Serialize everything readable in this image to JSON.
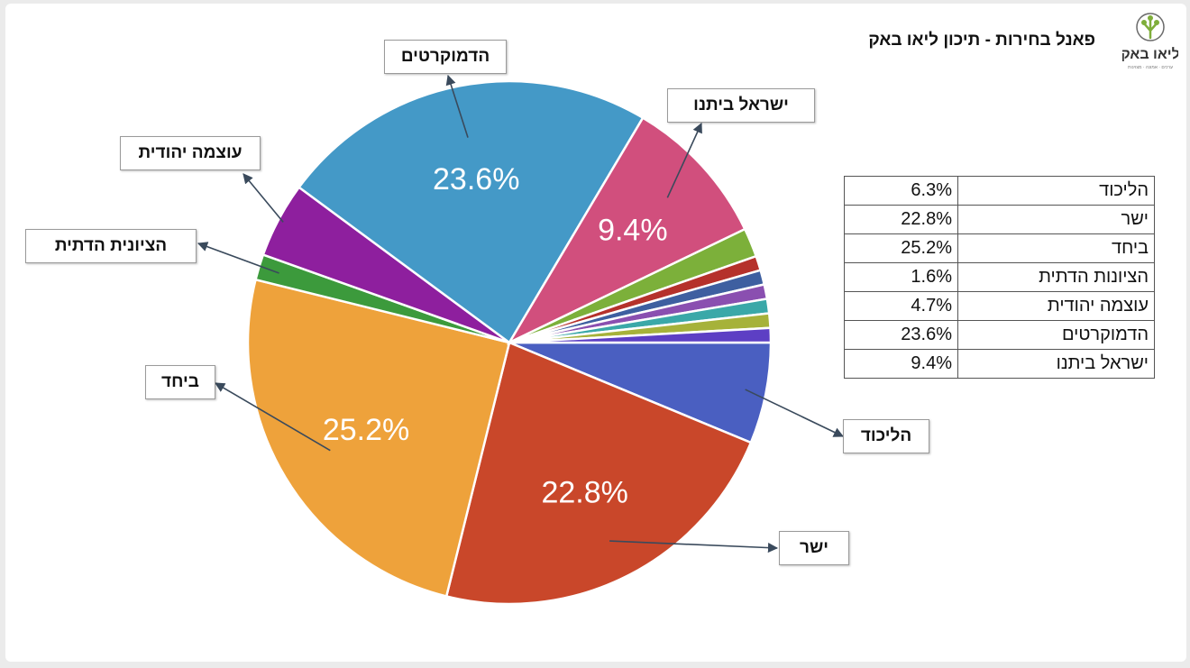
{
  "title": "פאנל בחירות - תיכון ליאו באק",
  "logo": {
    "icon": "tree-logo-icon",
    "text": "ליאו באק",
    "subtext": "ערכים · אמונה · מצוינות",
    "color": "#7fae3a"
  },
  "chart_data": {
    "type": "pie",
    "slices": [
      {
        "label": "הליכוד",
        "value": 6.3,
        "value_label": "",
        "color": "#4a5fc1"
      },
      {
        "label": "ישר",
        "value": 22.8,
        "value_label": "22.8%",
        "color": "#c9472a"
      },
      {
        "label": "ביחד",
        "value": 25.2,
        "value_label": "25.2%",
        "color": "#eea23b"
      },
      {
        "label": "הציונית הדתית",
        "value": 1.6,
        "value_label": "",
        "color": "#3c9a3c"
      },
      {
        "label": "עוצמה יהודית",
        "value": 4.7,
        "value_label": "",
        "color": "#8e1f9e"
      },
      {
        "label": "הדמוקרטים",
        "value": 23.6,
        "value_label": "23.6%",
        "color": "#4499c7"
      },
      {
        "label": "ישראל ביתנו",
        "value": 9.4,
        "value_label": "9.4%",
        "color": "#d14f7d"
      },
      {
        "label": "",
        "value": 1.8,
        "value_label": "",
        "color": "#7cb03a"
      },
      {
        "label": "",
        "value": 0.9,
        "value_label": "",
        "color": "#b5312b"
      },
      {
        "label": "",
        "value": 0.9,
        "value_label": "",
        "color": "#3e5fa0"
      },
      {
        "label": "",
        "value": 0.9,
        "value_label": "",
        "color": "#8a4fb0"
      },
      {
        "label": "",
        "value": 0.9,
        "value_label": "",
        "color": "#3aa8a8"
      },
      {
        "label": "",
        "value": 0.9,
        "value_label": "",
        "color": "#a6b23a"
      },
      {
        "label": "",
        "value": 0.9,
        "value_label": "",
        "color": "#5d3fc4"
      }
    ],
    "table": [
      {
        "name": "הליכוד",
        "value": "6.3%"
      },
      {
        "name": "ישר",
        "value": "22.8%"
      },
      {
        "name": "ביחד",
        "value": "25.2%"
      },
      {
        "name": "הציונות הדתית",
        "value": "1.6%"
      },
      {
        "name": "עוצמה יהודית",
        "value": "4.7%"
      },
      {
        "name": "הדמוקרטים",
        "value": "23.6%"
      },
      {
        "name": "ישראל ביתנו",
        "value": "9.4%"
      }
    ]
  }
}
